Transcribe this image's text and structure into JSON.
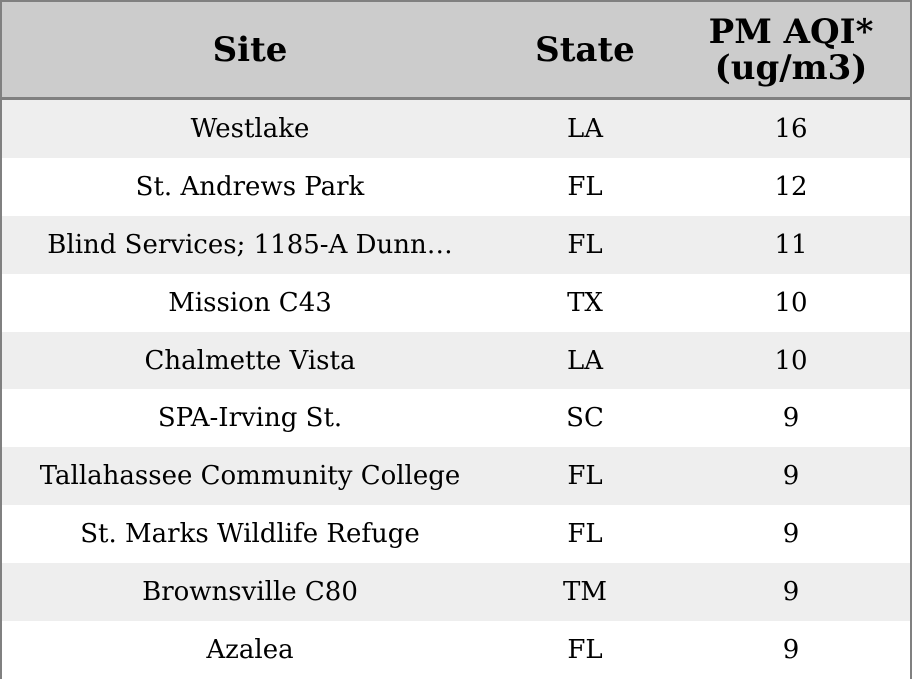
{
  "chart_data": {
    "type": "table",
    "columns": [
      "Site",
      "State",
      "PM AQI* (ug/m3)"
    ],
    "header": {
      "site": "Site",
      "state": "State",
      "pm_line1": "PM AQI*",
      "pm_line2": "(ug/m3)"
    },
    "rows": [
      {
        "site": "Westlake",
        "state": "LA",
        "pm_aqi": "16"
      },
      {
        "site": "St. Andrews Park",
        "state": "FL",
        "pm_aqi": "12"
      },
      {
        "site": "Blind Services; 1185-A Dunn…",
        "state": "FL",
        "pm_aqi": "11"
      },
      {
        "site": "Mission C43",
        "state": "TX",
        "pm_aqi": "10"
      },
      {
        "site": "Chalmette Vista",
        "state": "LA",
        "pm_aqi": "10"
      },
      {
        "site": "SPA-Irving St.",
        "state": "SC",
        "pm_aqi": "9"
      },
      {
        "site": "Tallahassee Community College",
        "state": "FL",
        "pm_aqi": "9"
      },
      {
        "site": "St. Marks Wildlife Refuge",
        "state": "FL",
        "pm_aqi": "9"
      },
      {
        "site": "Brownsville C80",
        "state": "TM",
        "pm_aqi": "9"
      },
      {
        "site": "Azalea",
        "state": "FL",
        "pm_aqi": "9"
      }
    ]
  },
  "colors": {
    "header_bg": "#cccccc",
    "stripe_bg": "#eeeeee",
    "row_bg": "#ffffff",
    "border": "#808080"
  }
}
